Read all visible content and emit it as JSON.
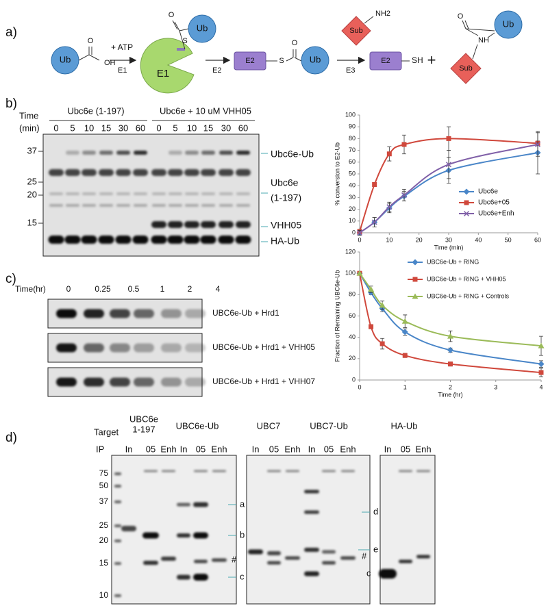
{
  "panel_labels": [
    "a)",
    "b)",
    "c)",
    "d)"
  ],
  "scheme": {
    "ub1": "Ub",
    "oh": "OH",
    "o1": "O",
    "atp": "+ ATP",
    "e1_arrow": "E1",
    "e1": "E1",
    "s1": "S",
    "o2": "O",
    "ub2": "Ub",
    "e2_arrow": "E2",
    "e2_box1": "E2",
    "s2": "S",
    "o3": "O",
    "ub3": "Ub",
    "sub1": "Sub",
    "nh2": "NH2",
    "e3_arrow": "E3",
    "e2_box2": "E2",
    "sh": "SH",
    "plus": "+",
    "sub2": "Sub",
    "nh": "NH",
    "o4": "O",
    "ub4": "Ub"
  },
  "gel_b": {
    "time_line1": "Time",
    "time_line2": "(min)",
    "groups": [
      "Ubc6e (1-197)",
      "Ubc6e + 10 uM VHH05"
    ],
    "times": [
      "0",
      "5",
      "10",
      "15",
      "30",
      "60",
      "0",
      "5",
      "10",
      "15",
      "30",
      "60"
    ],
    "markers": [
      "37",
      "25",
      "20",
      "15"
    ],
    "bands": {
      "e2ub": "Ubc6e-Ub",
      "e2_line1": "Ubc6e",
      "e2_line2": "(1-197)",
      "vhh": "VHH05",
      "haub": "HA-Ub"
    }
  },
  "gel_c": {
    "time_header": "Time(hr)",
    "times": [
      "0",
      "0.25",
      "0.5",
      "1",
      "2",
      "4"
    ],
    "rows": [
      "UBC6e-Ub + Hrd1",
      "UBC6e-Ub + Hrd1 + VHH05",
      "UBC6e-Ub + Hrd1 + VHH07"
    ]
  },
  "gel_d": {
    "target_label": "Target",
    "ip_label": "IP",
    "targets": [
      "UBC6e",
      "1-197",
      "UBC6e-Ub",
      "UBC7",
      "UBC7-Ub",
      "HA-Ub"
    ],
    "lanes": [
      "In",
      "05",
      "Enh",
      "In",
      "05",
      "Enh",
      "In",
      "05",
      "Enh",
      "In",
      "05",
      "Enh",
      "In",
      "05",
      "Enh"
    ],
    "markers": [
      "75",
      "50",
      "37",
      "25",
      "20",
      "15",
      "10"
    ],
    "band_letters": [
      "a",
      "b",
      "#",
      "c",
      "d",
      "e",
      "#",
      "c"
    ]
  },
  "chart_data": [
    {
      "type": "line",
      "x_label": "Time (min)",
      "y_label": "% conversion to E2-Ub",
      "x": [
        0,
        5,
        10,
        15,
        30,
        60
      ],
      "xlim": [
        0,
        60
      ],
      "xticks": [
        0,
        10,
        20,
        30,
        40,
        50,
        60
      ],
      "ylim": [
        0,
        100
      ],
      "yticks": [
        0,
        10,
        20,
        30,
        40,
        50,
        60,
        70,
        80,
        90,
        100
      ],
      "legend": "lower right",
      "series": [
        {
          "name": "Ubc6e",
          "color": "#4a86c8",
          "marker": "diamond",
          "values": [
            0,
            9,
            21,
            31,
            53,
            68
          ],
          "errors": [
            2,
            4,
            4,
            4,
            11,
            18
          ]
        },
        {
          "name": "Ubc6e+05",
          "color": "#d0483c",
          "marker": "square",
          "values": [
            1,
            41,
            67,
            75,
            80,
            76
          ],
          "errors": [
            2,
            1,
            6,
            8,
            10,
            2
          ]
        },
        {
          "name": "Ubc6e+Enh",
          "color": "#8060a8",
          "marker": "cross",
          "values": [
            0,
            9,
            22,
            32,
            58,
            75
          ],
          "errors": [
            2,
            4,
            4,
            5,
            12,
            10
          ]
        }
      ]
    },
    {
      "type": "line",
      "x_label": "Time (hr)",
      "y_label": "Fraction of Remaining UBC6e-Ub",
      "x": [
        0,
        0.25,
        0.5,
        1,
        2,
        4
      ],
      "xlim": [
        0,
        4
      ],
      "xticks": [
        0,
        1,
        2,
        3,
        4
      ],
      "ylim": [
        0,
        120
      ],
      "yticks": [
        0,
        20,
        40,
        60,
        80,
        100,
        120
      ],
      "legend": "upper right",
      "series": [
        {
          "name": "UBC6e-Ub + RING",
          "color": "#4a86c8",
          "marker": "diamond",
          "values": [
            100,
            82,
            67,
            45,
            28,
            15
          ],
          "errors": [
            0,
            2,
            3,
            3,
            2,
            3
          ]
        },
        {
          "name": "UBC6e-Ub + RING + VHH05",
          "color": "#d0483c",
          "marker": "square",
          "values": [
            100,
            50,
            34,
            23,
            15,
            7
          ],
          "errors": [
            0,
            2,
            5,
            2,
            2,
            4
          ]
        },
        {
          "name": "UBC6e-Ub + RING + Controls",
          "color": "#9bbb59",
          "marker": "triangle",
          "values": [
            100,
            85,
            70,
            55,
            41,
            32
          ],
          "errors": [
            0,
            3,
            4,
            6,
            5,
            9
          ]
        }
      ]
    }
  ]
}
